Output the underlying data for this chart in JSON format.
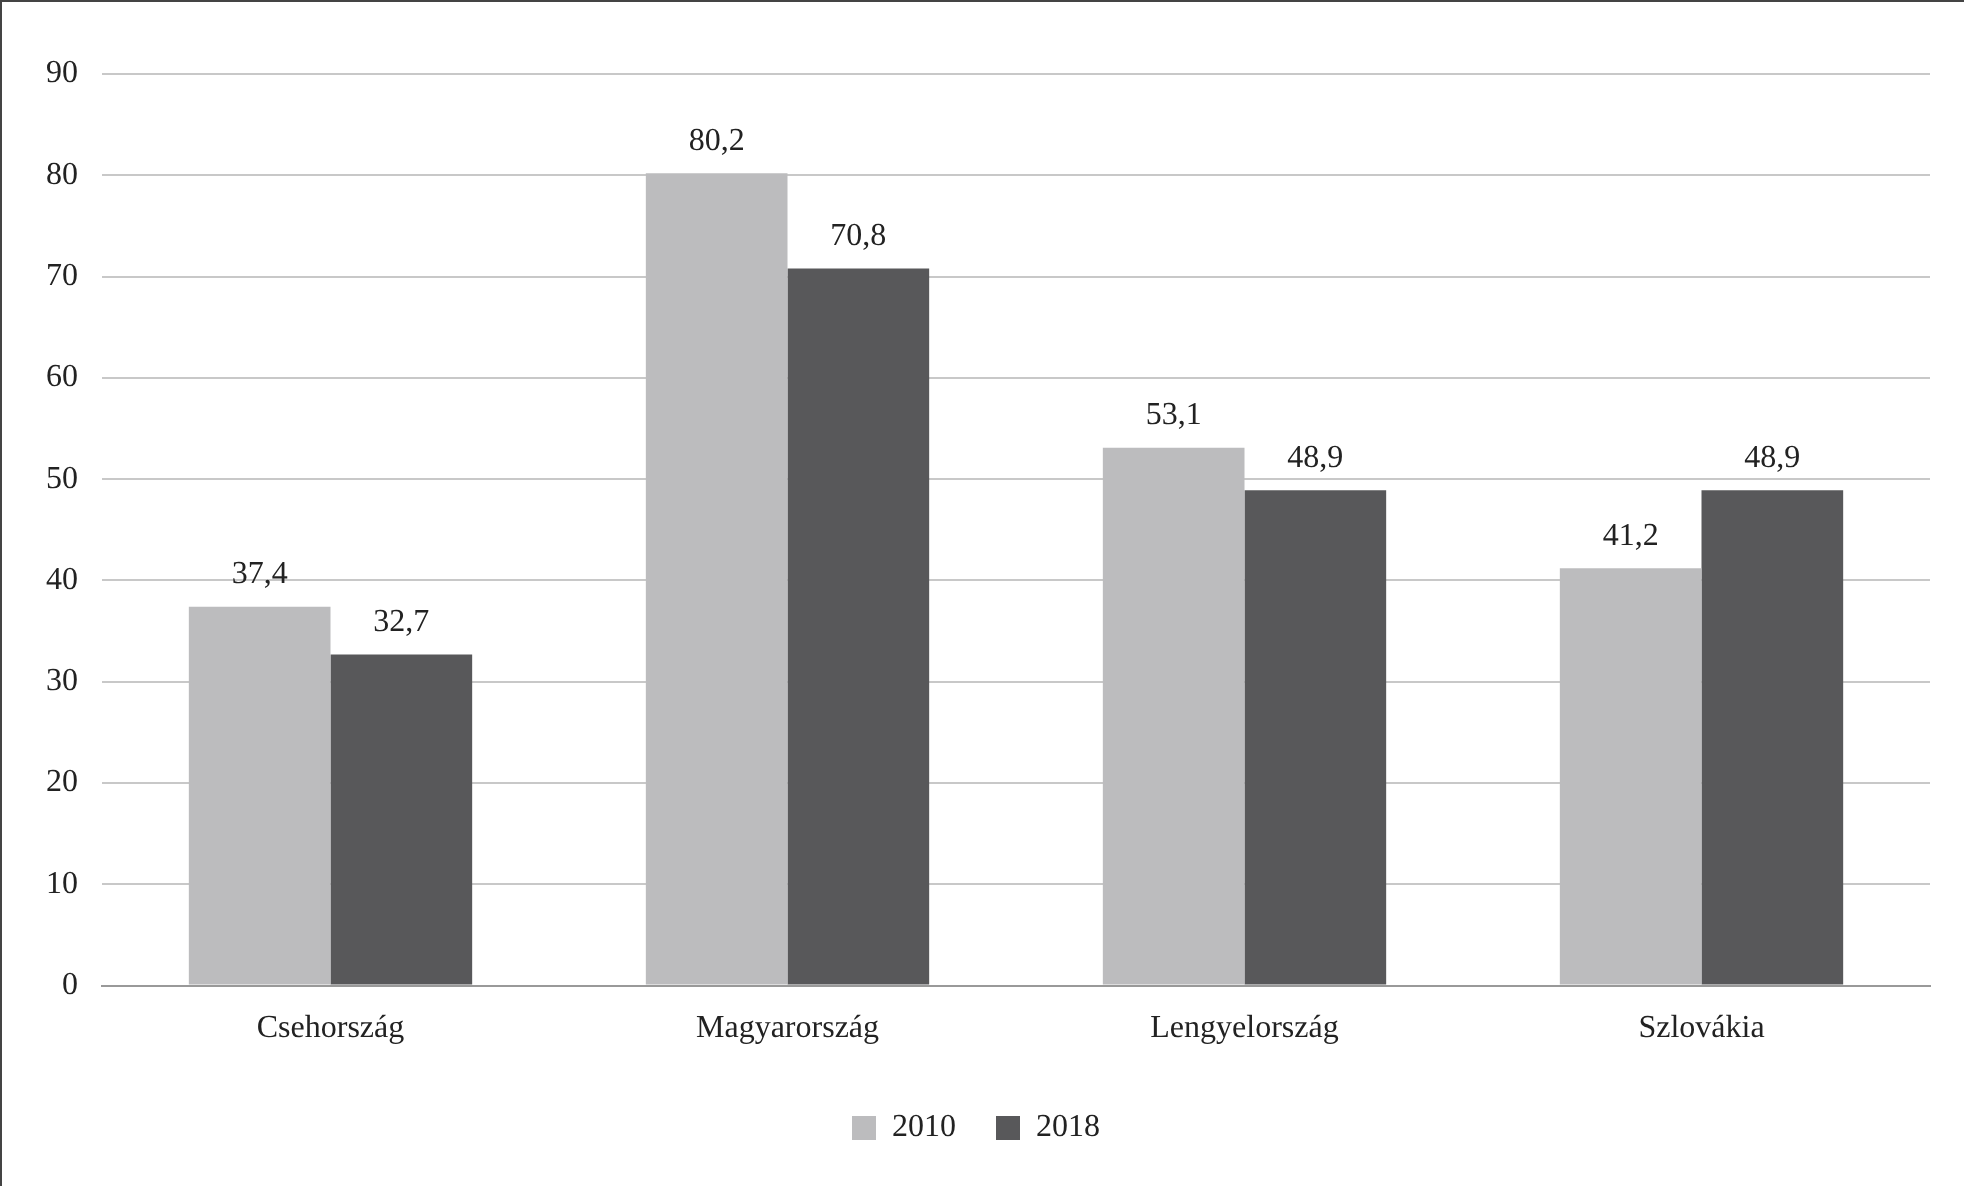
{
  "chart_data": {
    "type": "bar",
    "categories": [
      "Csehország",
      "Magyarország",
      "Lengyelország",
      "Szlovákia"
    ],
    "series": [
      {
        "name": "2010",
        "color": "#bcbcbe",
        "values": [
          37.4,
          80.2,
          53.1,
          41.2
        ],
        "value_labels": [
          "37,4",
          "80,2",
          "53,1",
          "41,2"
        ]
      },
      {
        "name": "2018",
        "color": "#58585a",
        "values": [
          32.7,
          70.8,
          48.9,
          48.9
        ],
        "value_labels": [
          "32,7",
          "70,8",
          "48,9",
          "48,9"
        ]
      }
    ],
    "ylim": [
      0,
      90
    ],
    "yticks": [
      0,
      10,
      20,
      30,
      40,
      50,
      60,
      70,
      80,
      90
    ],
    "grid": "y",
    "legend": "bottom"
  }
}
